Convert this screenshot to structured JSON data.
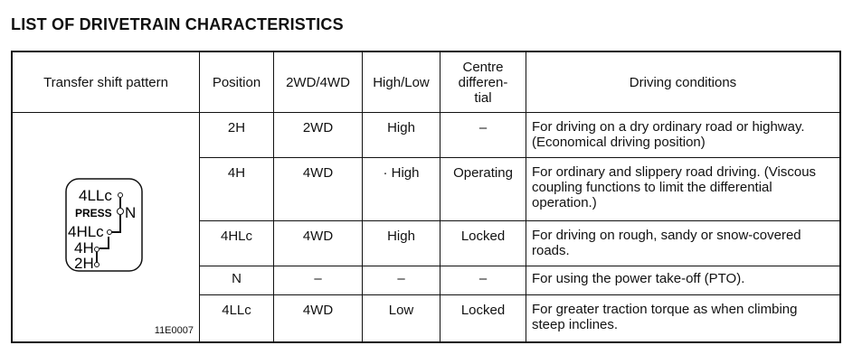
{
  "title": "LIST OF DRIVETRAIN CHARACTERISTICS",
  "headers": [
    "Transfer shift pattern",
    "Position",
    "2WD/4WD",
    "High/Low",
    "Centre differen- tial",
    "Driving conditions"
  ],
  "rows": [
    {
      "position": "2H",
      "drive": "2WD",
      "range": "High",
      "centre_diff": "–",
      "conditions": "For driving on a dry ordinary road or highway. (Economical driving position)"
    },
    {
      "position": "4H",
      "drive": "4WD",
      "range": "· High",
      "centre_diff": "Operating",
      "conditions": "For ordinary and slippery road driving. (Viscous coupling functions to limit the differential operation.)"
    },
    {
      "position": "4HLc",
      "drive": "4WD",
      "range": "High",
      "centre_diff": "Locked",
      "conditions": "For driving on rough, sandy or snow-covered roads."
    },
    {
      "position": "N",
      "drive": "–",
      "range": "–",
      "centre_diff": "–",
      "conditions": "For using the power take-off (PTO)."
    },
    {
      "position": "4LLc",
      "drive": "4WD",
      "range": "Low",
      "centre_diff": "Locked",
      "conditions": "For greater traction torque as when climbing steep inclines."
    }
  ],
  "shift_pattern": {
    "labels": [
      "4LLc",
      "PRESS",
      "N",
      "4HLc",
      "4H",
      "2H"
    ],
    "figure_code": "11E0007"
  }
}
